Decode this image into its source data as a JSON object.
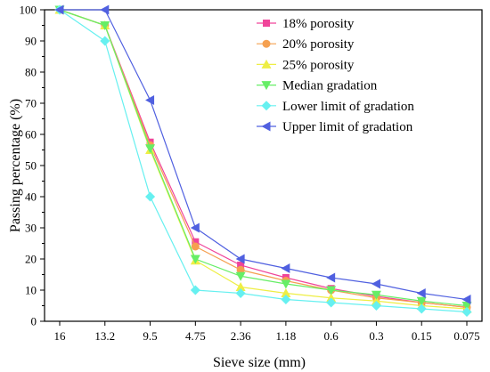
{
  "chart_data": {
    "type": "line",
    "xlabel": "Sieve size (mm)",
    "ylabel": "Passing percentage (%)",
    "x": [
      "16",
      "13.2",
      "9.5",
      "4.75",
      "2.36",
      "1.18",
      "0.6",
      "0.3",
      "0.15",
      "0.075"
    ],
    "y_ticks": [
      0,
      10,
      20,
      30,
      40,
      50,
      60,
      70,
      80,
      90,
      100
    ],
    "ylim": [
      0,
      100
    ],
    "grid": false,
    "legend_position": "top-right",
    "series": [
      {
        "name": "18% porosity",
        "color": "#f0459a",
        "marker": "square",
        "values": [
          100,
          95,
          57.5,
          25.5,
          18,
          14,
          10.5,
          8,
          6,
          4.5
        ]
      },
      {
        "name": "20% porosity",
        "color": "#f5a050",
        "marker": "circle",
        "values": [
          100,
          95,
          56.5,
          24,
          16.5,
          13,
          10,
          7.5,
          6,
          4.5
        ]
      },
      {
        "name": "25% porosity",
        "color": "#eeee44",
        "marker": "triangle-up",
        "values": [
          100,
          95,
          55,
          19.5,
          11,
          9,
          7.5,
          6.5,
          5,
          4
        ]
      },
      {
        "name": "Median gradation",
        "color": "#66ee66",
        "marker": "triangle-down",
        "values": [
          100,
          95,
          55.5,
          20,
          14.5,
          12,
          10,
          8.5,
          6.5,
          5
        ]
      },
      {
        "name": "Lower limit of gradation",
        "color": "#66f0f0",
        "marker": "diamond",
        "values": [
          100,
          90,
          40,
          10,
          9,
          7,
          6,
          5,
          4,
          3
        ]
      },
      {
        "name": "Upper limit of gradation",
        "color": "#5060e0",
        "marker": "triangle-left",
        "values": [
          100,
          100,
          71,
          30,
          20,
          17,
          14,
          12,
          9,
          7
        ]
      }
    ]
  }
}
